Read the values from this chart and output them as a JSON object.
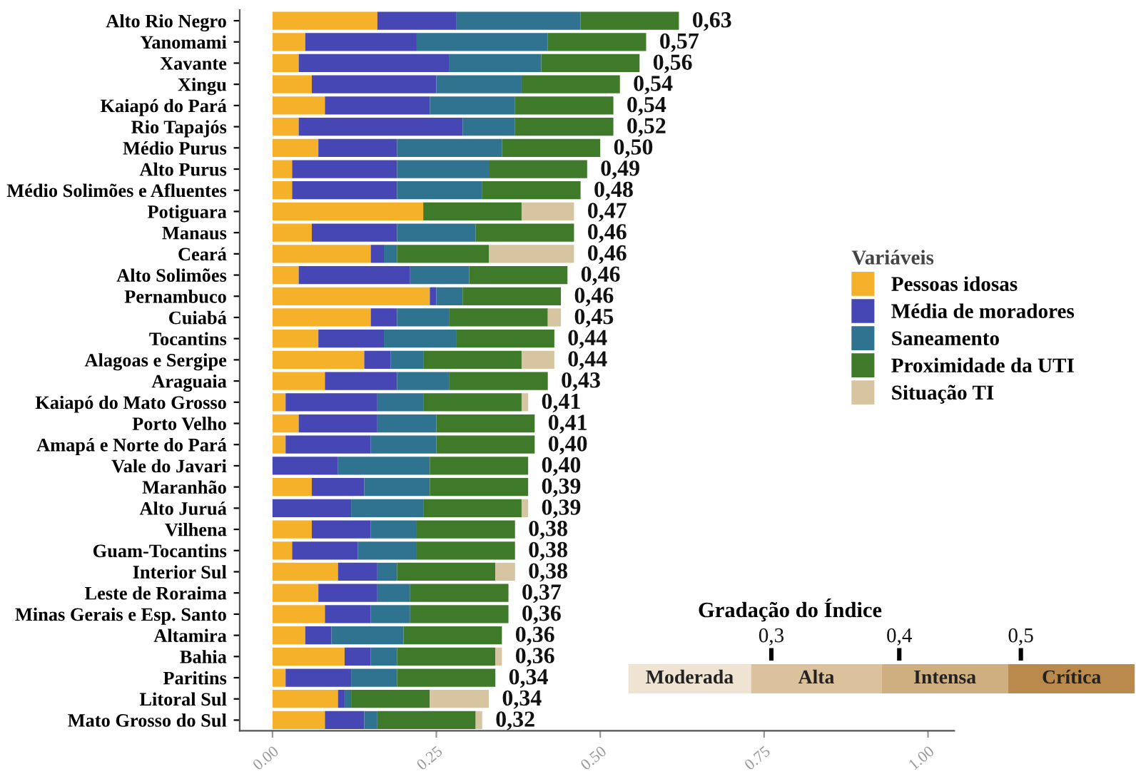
{
  "chart_data": [
    {
      "type": "bar",
      "orientation": "horizontal",
      "stacked": true,
      "legend": "right",
      "legend_title": "Variáveis",
      "categories": [
        "Alto Rio Negro",
        "Yanomami",
        "Xavante",
        "Xingu",
        "Kaiapó do Pará",
        "Rio Tapajós",
        "Médio Purus",
        "Alto Purus",
        "Médio Solimões e Afluentes",
        "Potiguara",
        "Manaus",
        "Ceará",
        "Alto Solimões",
        "Pernambuco",
        "Cuiabá",
        "Tocantins",
        "Alagoas e Sergipe",
        "Araguaia",
        "Kaiapó do Mato Grosso",
        "Porto Velho",
        "Amapá e Norte do Pará",
        "Vale do Javari",
        "Maranhão",
        "Alto Juruá",
        "Vilhena",
        "Guam-Tocantins",
        "Interior Sul",
        "Leste de Roraima",
        "Minas Gerais e Esp. Santo",
        "Altamira",
        "Bahia",
        "Paritins",
        "Litoral Sul",
        "Mato Grosso do Sul"
      ],
      "series": [
        {
          "name": "Pessoas idosas",
          "color": "#f6b12a",
          "values": [
            0.16,
            0.05,
            0.04,
            0.06,
            0.08,
            0.04,
            0.07,
            0.03,
            0.03,
            0.23,
            0.06,
            0.15,
            0.04,
            0.24,
            0.15,
            0.07,
            0.14,
            0.08,
            0.02,
            0.04,
            0.02,
            0,
            0.06,
            0,
            0.06,
            0.03,
            0.1,
            0.07,
            0.08,
            0.05,
            0.11,
            0.02,
            0.1,
            0.08
          ]
        },
        {
          "name": "Média de moradores",
          "color": "#4646b4",
          "values": [
            0.12,
            0.17,
            0.23,
            0.19,
            0.16,
            0.25,
            0.12,
            0.16,
            0.16,
            0,
            0.13,
            0.02,
            0.17,
            0.01,
            0.04,
            0.1,
            0.04,
            0.11,
            0.14,
            0.12,
            0.13,
            0.1,
            0.08,
            0.12,
            0.09,
            0.1,
            0.06,
            0.09,
            0.07,
            0.04,
            0.04,
            0.1,
            0.01,
            0.06
          ]
        },
        {
          "name": "Saneamento",
          "color": "#2f7391",
          "values": [
            0.19,
            0.2,
            0.14,
            0.13,
            0.13,
            0.08,
            0.16,
            0.14,
            0.13,
            0,
            0.12,
            0.02,
            0.09,
            0.04,
            0.08,
            0.11,
            0.05,
            0.08,
            0.07,
            0.09,
            0.1,
            0.14,
            0.1,
            0.11,
            0.07,
            0.09,
            0.03,
            0.05,
            0.06,
            0.11,
            0.04,
            0.07,
            0.01,
            0.02
          ]
        },
        {
          "name": "Proximidade da UTI",
          "color": "#3f7a2a",
          "values": [
            0.15,
            0.15,
            0.15,
            0.15,
            0.15,
            0.15,
            0.15,
            0.15,
            0.15,
            0.15,
            0.15,
            0.14,
            0.15,
            0.15,
            0.15,
            0.15,
            0.15,
            0.15,
            0.15,
            0.15,
            0.15,
            0.15,
            0.15,
            0.15,
            0.15,
            0.15,
            0.15,
            0.15,
            0.15,
            0.15,
            0.15,
            0.15,
            0.12,
            0.15
          ]
        },
        {
          "name": "Situação TI",
          "color": "#d7c4a0",
          "values": [
            0,
            0,
            0,
            0,
            0,
            0,
            0,
            0,
            0,
            0.08,
            0,
            0.13,
            0,
            0,
            0.02,
            0,
            0.05,
            0,
            0.01,
            0,
            0,
            0,
            0,
            0.01,
            0,
            0,
            0.03,
            0,
            0,
            0,
            0.01,
            0,
            0.09,
            0.01
          ]
        }
      ],
      "totals": [
        "0,63",
        "0,57",
        "0,56",
        "0,54",
        "0,54",
        "0,52",
        "0,50",
        "0,49",
        "0,48",
        "0,47",
        "0,46",
        "0,46",
        "0,46",
        "0,46",
        "0,45",
        "0,44",
        "0,44",
        "0,43",
        "0,41",
        "0,41",
        "0,40",
        "0,40",
        "0,39",
        "0,39",
        "0,38",
        "0,38",
        "0,38",
        "0,37",
        "0,36",
        "0,36",
        "0,36",
        "0,34",
        "0,34",
        "0,32"
      ],
      "xlim": [
        -0.05,
        1.04
      ],
      "xticks": [
        {
          "value": 0,
          "label": "0.00"
        },
        0.25,
        {
          "value": 0.5,
          "label": "0.50"
        },
        0.75,
        {
          "value": 1,
          "label": "1.00"
        }
      ],
      "grid": false
    },
    {
      "type": "other",
      "title": "Gradação do Índice",
      "annotations": [
        "Moderada",
        "Alta",
        "Intensa",
        "Crítica",
        "0,3",
        "0,4",
        "0,5"
      ]
    }
  ]
}
